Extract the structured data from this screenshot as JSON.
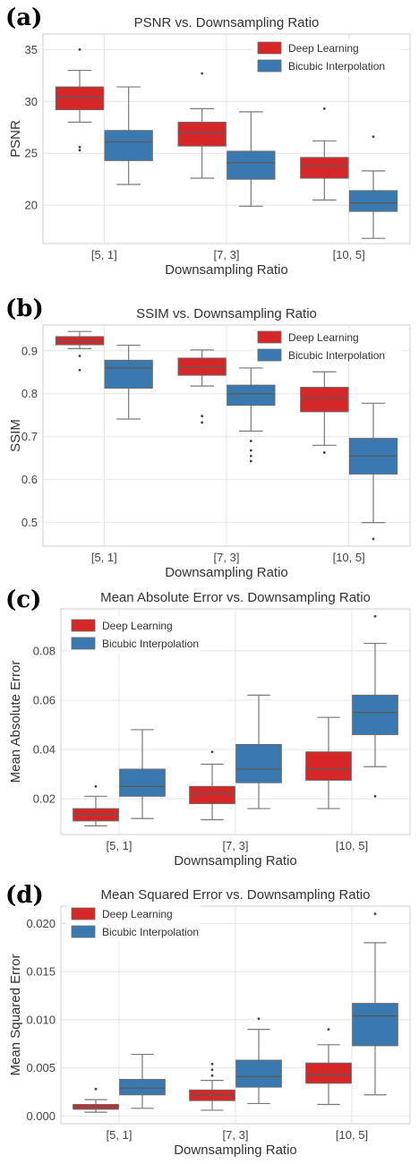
{
  "colors": {
    "deep_learning": "#d62728",
    "bicubic": "#3a78b0",
    "grid": "#e4e4e4",
    "frame": "#cfcfcf",
    "whisker": "#7a7a7a"
  },
  "chart_data": [
    {
      "type": "box",
      "panel_letter": "(a)",
      "title": "PSNR vs. Downsampling Ratio",
      "xlabel": "Downsampling Ratio",
      "ylabel": "PSNR",
      "ylim": [
        16.3,
        36.5
      ],
      "yticks": [
        20,
        25,
        30,
        35
      ],
      "ytick_labels": [
        "20",
        "25",
        "30",
        "35"
      ],
      "grid": true,
      "legend_position": "top-right",
      "categories": [
        "[5, 1]",
        "[7, 3]",
        "[10, 5]"
      ],
      "series": [
        {
          "name": "Deep Learning",
          "color": "#d62728",
          "boxes": [
            {
              "whislo": 28.0,
              "q1": 29.2,
              "med": 30.4,
              "q3": 31.4,
              "whishi": 33.0,
              "fliers": [
                35.0,
                25.6,
                25.3
              ]
            },
            {
              "whislo": 22.6,
              "q1": 25.7,
              "med": 27.0,
              "q3": 28.0,
              "whishi": 29.3,
              "fliers": [
                32.7
              ]
            },
            {
              "whislo": 20.5,
              "q1": 22.6,
              "med": 23.8,
              "q3": 24.6,
              "whishi": 26.2,
              "fliers": [
                29.3
              ]
            }
          ]
        },
        {
          "name": "Bicubic Interpolation",
          "color": "#3a78b0",
          "boxes": [
            {
              "whislo": 22.0,
              "q1": 24.3,
              "med": 26.1,
              "q3": 27.2,
              "whishi": 31.4,
              "fliers": []
            },
            {
              "whislo": 19.9,
              "q1": 22.5,
              "med": 24.1,
              "q3": 25.2,
              "whishi": 29.0,
              "fliers": []
            },
            {
              "whislo": 16.8,
              "q1": 19.4,
              "med": 20.2,
              "q3": 21.4,
              "whishi": 23.3,
              "fliers": [
                26.6
              ]
            }
          ]
        }
      ]
    },
    {
      "type": "box",
      "panel_letter": "(b)",
      "title": "SSIM vs. Downsampling Ratio",
      "xlabel": "Downsampling Ratio",
      "ylabel": "SSIM",
      "ylim": [
        0.445,
        0.96
      ],
      "yticks": [
        0.5,
        0.6,
        0.7,
        0.8,
        0.9
      ],
      "ytick_labels": [
        "0.5",
        "0.6",
        "0.7",
        "0.8",
        "0.9"
      ],
      "grid": true,
      "legend_position": "top-right",
      "categories": [
        "[5, 1]",
        "[7, 3]",
        "[10, 5]"
      ],
      "series": [
        {
          "name": "Deep Learning",
          "color": "#d62728",
          "boxes": [
            {
              "whislo": 0.905,
              "q1": 0.914,
              "med": 0.923,
              "q3": 0.933,
              "whishi": 0.945,
              "fliers": [
                0.888,
                0.855
              ]
            },
            {
              "whislo": 0.818,
              "q1": 0.843,
              "med": 0.861,
              "q3": 0.883,
              "whishi": 0.902,
              "fliers": [
                0.748,
                0.733
              ]
            },
            {
              "whislo": 0.68,
              "q1": 0.758,
              "med": 0.79,
              "q3": 0.815,
              "whishi": 0.851,
              "fliers": [
                0.663
              ]
            }
          ]
        },
        {
          "name": "Bicubic Interpolation",
          "color": "#3a78b0",
          "boxes": [
            {
              "whislo": 0.741,
              "q1": 0.813,
              "med": 0.86,
              "q3": 0.878,
              "whishi": 0.913,
              "fliers": []
            },
            {
              "whislo": 0.713,
              "q1": 0.773,
              "med": 0.8,
              "q3": 0.82,
              "whishi": 0.86,
              "fliers": [
                0.69,
                0.668,
                0.655,
                0.643
              ]
            },
            {
              "whislo": 0.5,
              "q1": 0.613,
              "med": 0.655,
              "q3": 0.696,
              "whishi": 0.778,
              "fliers": [
                0.462
              ]
            }
          ]
        }
      ]
    },
    {
      "type": "box",
      "panel_letter": "(c)",
      "title": "Mean Absolute Error vs. Downsampling Ratio",
      "xlabel": "Downsampling Ratio",
      "ylabel": "Mean Absolute Error",
      "ylim": [
        0.0055,
        0.097
      ],
      "yticks": [
        0.02,
        0.04,
        0.06,
        0.08
      ],
      "ytick_labels": [
        "0.02",
        "0.04",
        "0.06",
        "0.08"
      ],
      "grid": true,
      "legend_position": "top-left",
      "categories": [
        "[5, 1]",
        "[7, 3]",
        "[10, 5]"
      ],
      "series": [
        {
          "name": "Deep Learning",
          "color": "#d62728",
          "boxes": [
            {
              "whislo": 0.009,
              "q1": 0.011,
              "med": 0.0135,
              "q3": 0.016,
              "whishi": 0.021,
              "fliers": [
                0.025
              ]
            },
            {
              "whislo": 0.0115,
              "q1": 0.018,
              "med": 0.022,
              "q3": 0.025,
              "whishi": 0.034,
              "fliers": [
                0.039
              ]
            },
            {
              "whislo": 0.016,
              "q1": 0.0275,
              "med": 0.032,
              "q3": 0.039,
              "whishi": 0.053,
              "fliers": []
            }
          ]
        },
        {
          "name": "Bicubic Interpolation",
          "color": "#3a78b0",
          "boxes": [
            {
              "whislo": 0.012,
              "q1": 0.021,
              "med": 0.025,
              "q3": 0.032,
              "whishi": 0.048,
              "fliers": []
            },
            {
              "whislo": 0.016,
              "q1": 0.0265,
              "med": 0.032,
              "q3": 0.042,
              "whishi": 0.062,
              "fliers": []
            },
            {
              "whislo": 0.033,
              "q1": 0.046,
              "med": 0.055,
              "q3": 0.062,
              "whishi": 0.083,
              "fliers": [
                0.094,
                0.021
              ]
            }
          ]
        }
      ]
    },
    {
      "type": "box",
      "panel_letter": "(d)",
      "title": "Mean Squared Error vs. Downsampling Ratio",
      "xlabel": "Downsampling Ratio",
      "ylabel": "Mean Squared Error",
      "ylim": [
        -0.0008,
        0.0218
      ],
      "yticks": [
        0.0,
        0.005,
        0.01,
        0.015,
        0.02
      ],
      "ytick_labels": [
        "0.000",
        "0.005",
        "0.010",
        "0.015",
        "0.020"
      ],
      "grid": true,
      "legend_position": "top-left",
      "categories": [
        "[5, 1]",
        "[7, 3]",
        "[10, 5]"
      ],
      "series": [
        {
          "name": "Deep Learning",
          "color": "#d62728",
          "boxes": [
            {
              "whislo": 0.0004,
              "q1": 0.0007,
              "med": 0.0009,
              "q3": 0.0012,
              "whishi": 0.0017,
              "fliers": [
                0.0028
              ]
            },
            {
              "whislo": 0.0006,
              "q1": 0.0016,
              "med": 0.0022,
              "q3": 0.0027,
              "whishi": 0.0037,
              "fliers": [
                0.0054,
                0.0048,
                0.0042
              ]
            },
            {
              "whislo": 0.0012,
              "q1": 0.0034,
              "med": 0.0043,
              "q3": 0.0055,
              "whishi": 0.0074,
              "fliers": [
                0.009
              ]
            }
          ]
        },
        {
          "name": "Bicubic Interpolation",
          "color": "#3a78b0",
          "boxes": [
            {
              "whislo": 0.0008,
              "q1": 0.0022,
              "med": 0.0029,
              "q3": 0.0038,
              "whishi": 0.0064,
              "fliers": []
            },
            {
              "whislo": 0.0013,
              "q1": 0.003,
              "med": 0.0041,
              "q3": 0.0058,
              "whishi": 0.009,
              "fliers": [
                0.0101
              ]
            },
            {
              "whislo": 0.0022,
              "q1": 0.0073,
              "med": 0.0104,
              "q3": 0.0117,
              "whishi": 0.018,
              "fliers": [
                0.021
              ]
            }
          ]
        }
      ]
    }
  ]
}
